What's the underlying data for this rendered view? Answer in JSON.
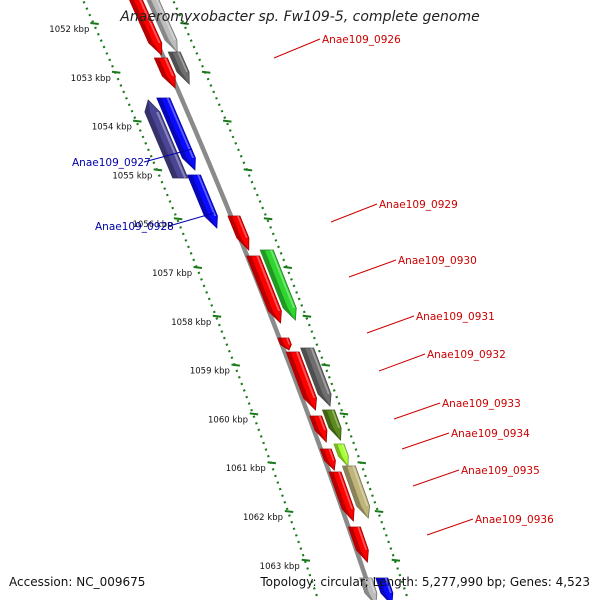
{
  "title": "Anaeromyxobacter sp. Fw109-5, complete genome",
  "footer": {
    "accession": "Accession: NC_009675",
    "summary": "Topology: circular; Length: 5,277,990 bp; Genes: 4,523"
  },
  "colors": {
    "backbone": "#8a8a8a",
    "tick": "#1a7a1a",
    "label_forward": "#cc0000",
    "label_reverse": "#0000aa",
    "red": "#ff0000",
    "blue": "#0a0aff",
    "navy": "#4a4595",
    "gray": "#6e6e6e",
    "lightgray": "#bdbdbd",
    "green": "#2fd62f",
    "olive": "#5c8a1c",
    "lime": "#a6ff33",
    "khaki": "#bfb57a"
  },
  "scale_labels": [
    "1052 kbp",
    "1053 kbp",
    "1054 kbp",
    "1055 kbp",
    "1056 kbp",
    "1057 kbp",
    "1058 kbp",
    "1059 kbp",
    "1060 kbp",
    "1061 kbp",
    "1062 kbp",
    "1063 kbp"
  ],
  "gene_labels": [
    {
      "text": "Anae109_0926",
      "strand": "forward"
    },
    {
      "text": "Anae109_0927",
      "strand": "reverse"
    },
    {
      "text": "Anae109_0928",
      "strand": "reverse"
    },
    {
      "text": "Anae109_0929",
      "strand": "forward"
    },
    {
      "text": "Anae109_0930",
      "strand": "forward"
    },
    {
      "text": "Anae109_0931",
      "strand": "forward"
    },
    {
      "text": "Anae109_0932",
      "strand": "forward"
    },
    {
      "text": "Anae109_0933",
      "strand": "forward"
    },
    {
      "text": "Anae109_0934",
      "strand": "forward"
    },
    {
      "text": "Anae109_0935",
      "strand": "forward"
    },
    {
      "text": "Anae109_0936",
      "strand": "forward"
    }
  ]
}
